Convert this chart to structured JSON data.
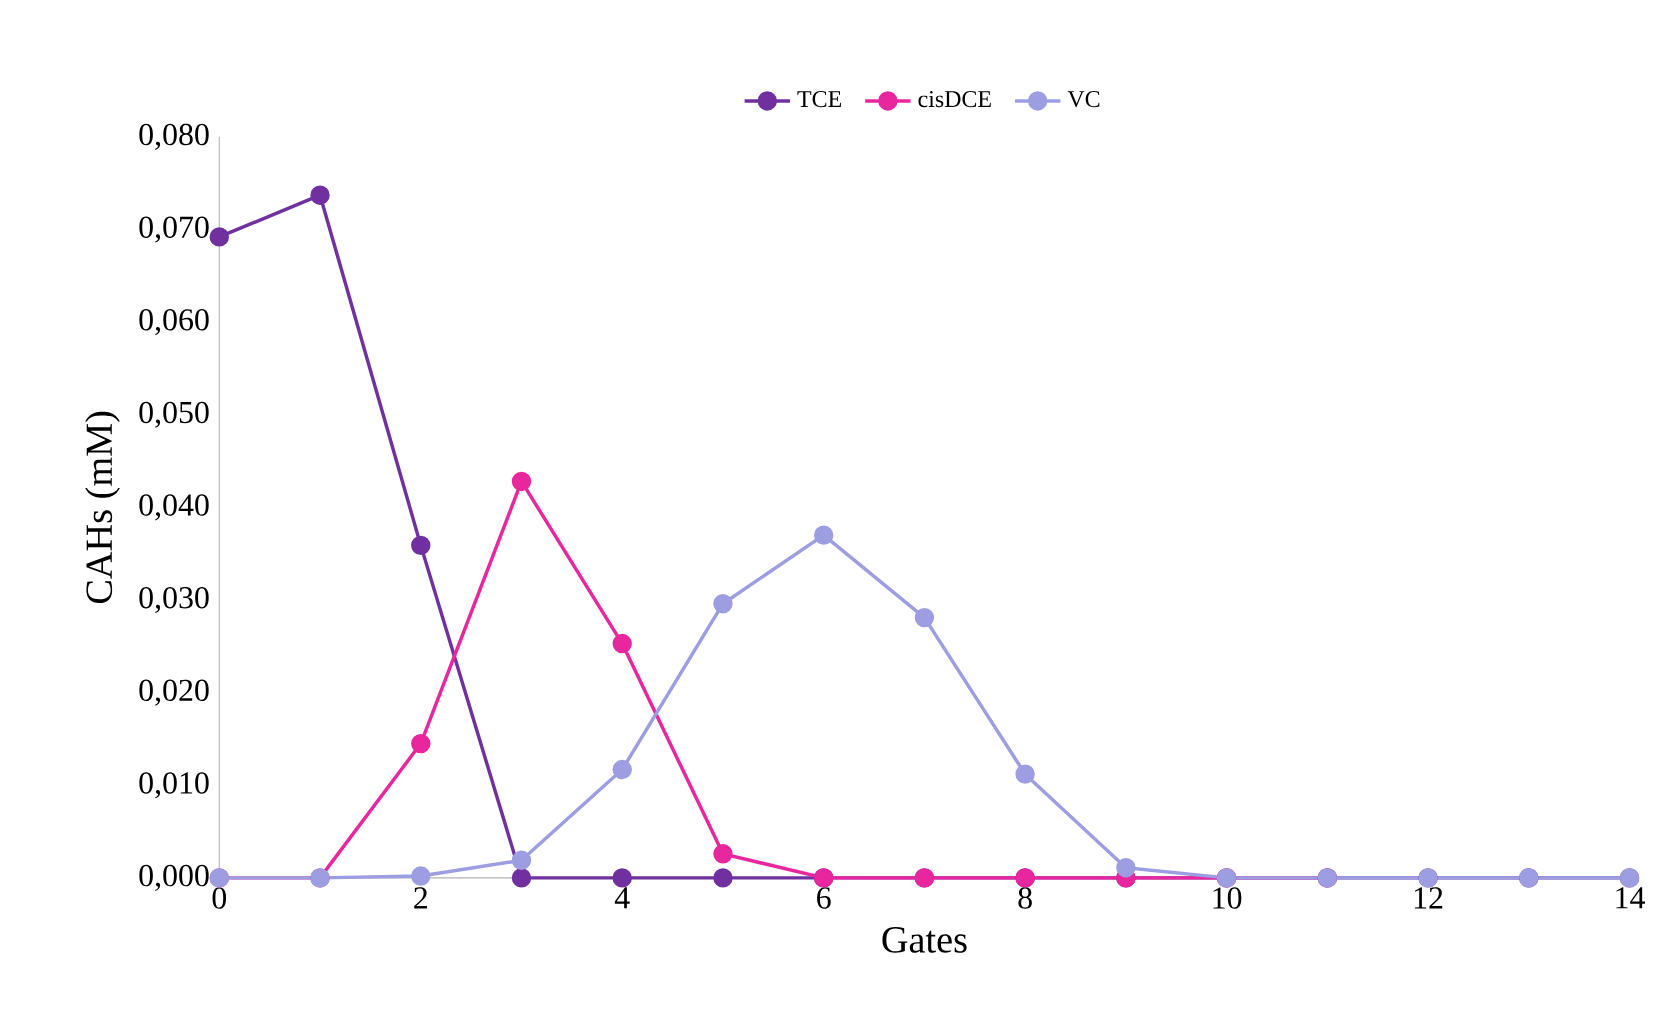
{
  "chart_data": {
    "type": "line",
    "xlabel": "Gates",
    "ylabel": "CAHs (mM)",
    "x": [
      0,
      1,
      2,
      3,
      4,
      5,
      6,
      7,
      8,
      9,
      10,
      11,
      12,
      13,
      14
    ],
    "series": [
      {
        "name": "TCE",
        "color": "#7030a0",
        "values": [
          0.0692,
          0.0737,
          0.0359,
          0,
          0,
          0,
          0,
          0,
          0,
          0,
          0,
          0,
          0,
          0,
          0
        ]
      },
      {
        "name": "cisDCE",
        "color": "#e8279e",
        "values": [
          0,
          0,
          0.0145,
          0.0428,
          0.0253,
          0.0026,
          0,
          0,
          0,
          0,
          0,
          0,
          null,
          null,
          null
        ]
      },
      {
        "name": "VC",
        "color": "#9d9de2",
        "values": [
          0,
          0,
          0.0002,
          0.0019,
          0.0117,
          0.0296,
          0.037,
          0.0281,
          0.0112,
          0.0011,
          0,
          0,
          0,
          0,
          0
        ]
      }
    ],
    "xlim": [
      0,
      14
    ],
    "xticks": [
      0,
      2,
      4,
      6,
      8,
      10,
      12,
      14
    ],
    "ylim": [
      0,
      0.08
    ],
    "yticks": [
      {
        "value": 0,
        "label": "0,000"
      },
      {
        "value": 0.01,
        "label": "0,010"
      },
      {
        "value": 0.02,
        "label": "0,020"
      },
      {
        "value": 0.03,
        "label": "0,030"
      },
      {
        "value": 0.04,
        "label": "0,040"
      },
      {
        "value": 0.05,
        "label": "0,050"
      },
      {
        "value": 0.06,
        "label": "0,060"
      },
      {
        "value": 0.07,
        "label": "0,070"
      },
      {
        "value": 0.08,
        "label": "0,080"
      }
    ],
    "legend": "top",
    "marker": "circle",
    "line_style": "solid",
    "grid": false
  }
}
